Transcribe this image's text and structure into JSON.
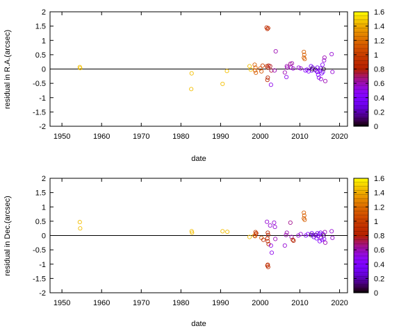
{
  "chart_data": [
    {
      "type": "scatter",
      "xlabel": "date",
      "ylabel": "residual in R.A.(arcsec)",
      "xlim": [
        1947,
        2022
      ],
      "ylim": [
        -2,
        2
      ],
      "xticks": [
        "1950",
        "1960",
        "1970",
        "1980",
        "1990",
        "2000",
        "2010",
        "2020"
      ],
      "yticks": [
        "-2",
        "-1.5",
        "-1",
        "-0.5",
        "0",
        "0.5",
        "1",
        "1.5",
        "2"
      ],
      "zero_line": true,
      "colorbar": {
        "range": [
          0,
          1.6
        ],
        "ticks": [
          "0",
          "0.2",
          "0.4",
          "0.6",
          "0.8",
          "1",
          "1.2",
          "1.4",
          "1.6"
        ],
        "palette": "gnuplot"
      },
      "points": [
        [
          1954.5,
          0.07,
          1.45
        ],
        [
          1954.6,
          0.03,
          1.45
        ],
        [
          1982.7,
          -0.15,
          1.45
        ],
        [
          1982.6,
          -0.7,
          1.45
        ],
        [
          1990.5,
          -0.52,
          1.45
        ],
        [
          1991.6,
          -0.07,
          1.45
        ],
        [
          1997.3,
          0.1,
          1.45
        ],
        [
          1997.6,
          -0.02,
          1.45
        ],
        [
          1998.6,
          0.15,
          1.15
        ],
        [
          1998.8,
          0.05,
          1.15
        ],
        [
          1998.7,
          -0.05,
          1.15
        ],
        [
          1998.9,
          -0.13,
          1.15
        ],
        [
          2000.0,
          0.02,
          1.1
        ],
        [
          2000.3,
          -0.08,
          1.1
        ],
        [
          2000.6,
          0.12,
          1.0
        ],
        [
          2001.6,
          1.45,
          0.9
        ],
        [
          2001.8,
          1.4,
          0.9
        ],
        [
          2002.0,
          1.43,
          0.9
        ],
        [
          2001.7,
          0.1,
          0.85
        ],
        [
          2001.9,
          0.05,
          0.85
        ],
        [
          2002.1,
          0.12,
          0.85
        ],
        [
          2001.9,
          -0.3,
          0.85
        ],
        [
          2001.8,
          -0.38,
          0.85
        ],
        [
          2002.5,
          0.1,
          0.75
        ],
        [
          2002.8,
          -0.05,
          0.75
        ],
        [
          2002.7,
          -0.55,
          0.5
        ],
        [
          2003.6,
          -0.05,
          0.6
        ],
        [
          2003.9,
          0.62,
          0.6
        ],
        [
          2006.2,
          -0.12,
          0.6
        ],
        [
          2006.6,
          -0.28,
          0.5
        ],
        [
          2006.7,
          0.1,
          0.6
        ],
        [
          2006.8,
          0.05,
          0.6
        ],
        [
          2007.6,
          0.18,
          0.65
        ],
        [
          2007.8,
          0.05,
          0.6
        ],
        [
          2008.0,
          0.2,
          0.6
        ],
        [
          2008.3,
          0.02,
          0.55
        ],
        [
          2009.7,
          0.05,
          0.55
        ],
        [
          2010.2,
          0.02,
          0.55
        ],
        [
          2011.0,
          0.6,
          1.15
        ],
        [
          2011.1,
          0.5,
          1.15
        ],
        [
          2011.0,
          0.4,
          1.15
        ],
        [
          2011.2,
          0.35,
          1.15
        ],
        [
          2011.4,
          -0.05,
          0.45
        ],
        [
          2011.8,
          -0.02,
          0.45
        ],
        [
          2012.2,
          -0.08,
          0.45
        ],
        [
          2012.8,
          0.1,
          0.35
        ],
        [
          2013.0,
          -0.05,
          0.3
        ],
        [
          2013.2,
          0.05,
          0.25
        ],
        [
          2013.1,
          0.0,
          0.05
        ],
        [
          2013.9,
          -0.02,
          0.1
        ],
        [
          2014.2,
          -0.08,
          0.4
        ],
        [
          2014.4,
          0.05,
          0.35
        ],
        [
          2014.5,
          -0.1,
          0.45
        ],
        [
          2014.6,
          -0.2,
          0.45
        ],
        [
          2014.8,
          -0.3,
          0.45
        ],
        [
          2015.0,
          -0.05,
          0.5
        ],
        [
          2015.2,
          0.02,
          0.3
        ],
        [
          2015.3,
          -0.35,
          0.55
        ],
        [
          2015.5,
          -0.15,
          0.4
        ],
        [
          2015.7,
          0.15,
          0.45
        ],
        [
          2015.8,
          -0.1,
          0.35
        ],
        [
          2016.0,
          0.0,
          0.05
        ],
        [
          2016.1,
          0.3,
          0.55
        ],
        [
          2016.2,
          0.4,
          0.6
        ],
        [
          2016.4,
          -0.42,
          0.6
        ],
        [
          2018.0,
          0.52,
          0.55
        ],
        [
          2018.2,
          -0.1,
          0.55
        ]
      ]
    },
    {
      "type": "scatter",
      "xlabel": "date",
      "ylabel": "residual in Dec.(arcsec)",
      "xlim": [
        1947,
        2022
      ],
      "ylim": [
        -2,
        2
      ],
      "xticks": [
        "1950",
        "1960",
        "1970",
        "1980",
        "1990",
        "2000",
        "2010",
        "2020"
      ],
      "yticks": [
        "-2",
        "-1.5",
        "-1",
        "-0.5",
        "0",
        "0.5",
        "1",
        "1.5",
        "2"
      ],
      "zero_line": true,
      "colorbar": {
        "range": [
          0,
          1.6
        ],
        "ticks": [
          "0",
          "0.2",
          "0.4",
          "0.6",
          "0.8",
          "1",
          "1.2",
          "1.4",
          "1.6"
        ],
        "palette": "gnuplot"
      },
      "points": [
        [
          1954.5,
          0.47,
          1.45
        ],
        [
          1954.6,
          0.25,
          1.45
        ],
        [
          1982.7,
          0.15,
          1.45
        ],
        [
          1982.8,
          0.1,
          1.45
        ],
        [
          1990.5,
          0.15,
          1.45
        ],
        [
          1991.7,
          0.13,
          1.45
        ],
        [
          1997.3,
          -0.05,
          1.45
        ],
        [
          1998.5,
          0.0,
          1.4
        ],
        [
          1998.8,
          0.12,
          1.0
        ],
        [
          1998.9,
          0.05,
          1.0
        ],
        [
          1999.0,
          0.08,
          0.95
        ],
        [
          1998.7,
          -0.02,
          0.95
        ],
        [
          2000.3,
          -0.08,
          1.1
        ],
        [
          2000.8,
          -0.15,
          0.9
        ],
        [
          2001.7,
          0.48,
          0.55
        ],
        [
          2001.9,
          0.1,
          0.85
        ],
        [
          2002.0,
          0.02,
          0.85
        ],
        [
          2001.8,
          -0.1,
          0.85
        ],
        [
          2001.9,
          -0.2,
          0.85
        ],
        [
          2002.1,
          -0.3,
          0.85
        ],
        [
          2001.8,
          -1.05,
          0.9
        ],
        [
          2002.0,
          -1.1,
          0.9
        ],
        [
          2001.9,
          -1.02,
          0.9
        ],
        [
          2002.5,
          0.35,
          0.55
        ],
        [
          2002.7,
          -0.35,
          0.5
        ],
        [
          2002.9,
          -0.6,
          0.5
        ],
        [
          2003.5,
          0.45,
          0.55
        ],
        [
          2003.7,
          0.3,
          0.55
        ],
        [
          2003.8,
          -0.12,
          0.6
        ],
        [
          2006.2,
          -0.35,
          0.55
        ],
        [
          2006.5,
          0.02,
          0.6
        ],
        [
          2006.7,
          0.1,
          0.6
        ],
        [
          2007.6,
          0.45,
          0.65
        ],
        [
          2007.9,
          -0.05,
          0.6
        ],
        [
          2008.2,
          -0.15,
          0.8
        ],
        [
          2008.4,
          -0.18,
          0.8
        ],
        [
          2009.6,
          0.0,
          0.55
        ],
        [
          2010.2,
          0.05,
          0.55
        ],
        [
          2011.0,
          0.8,
          1.15
        ],
        [
          2011.1,
          0.7,
          1.15
        ],
        [
          2011.0,
          0.6,
          1.15
        ],
        [
          2011.2,
          0.55,
          1.15
        ],
        [
          2011.5,
          0.0,
          0.45
        ],
        [
          2012.0,
          0.05,
          0.45
        ],
        [
          2012.8,
          0.02,
          0.05
        ],
        [
          2013.0,
          0.08,
          0.35
        ],
        [
          2013.3,
          0.02,
          0.3
        ],
        [
          2013.5,
          -0.05,
          0.3
        ],
        [
          2014.0,
          0.02,
          0.1
        ],
        [
          2014.2,
          -0.1,
          0.4
        ],
        [
          2014.4,
          0.08,
          0.35
        ],
        [
          2014.6,
          -0.02,
          0.45
        ],
        [
          2014.9,
          0.05,
          0.4
        ],
        [
          2015.0,
          -0.2,
          0.45
        ],
        [
          2015.2,
          0.1,
          0.3
        ],
        [
          2015.3,
          -0.08,
          0.55
        ],
        [
          2015.6,
          -0.15,
          0.4
        ],
        [
          2015.8,
          0.05,
          0.35
        ],
        [
          2016.0,
          0.0,
          0.05
        ],
        [
          2016.1,
          -0.12,
          0.45
        ],
        [
          2016.3,
          0.12,
          0.6
        ],
        [
          2016.4,
          -0.25,
          0.6
        ],
        [
          2018.0,
          0.15,
          0.55
        ],
        [
          2018.2,
          -0.08,
          0.55
        ]
      ]
    }
  ]
}
